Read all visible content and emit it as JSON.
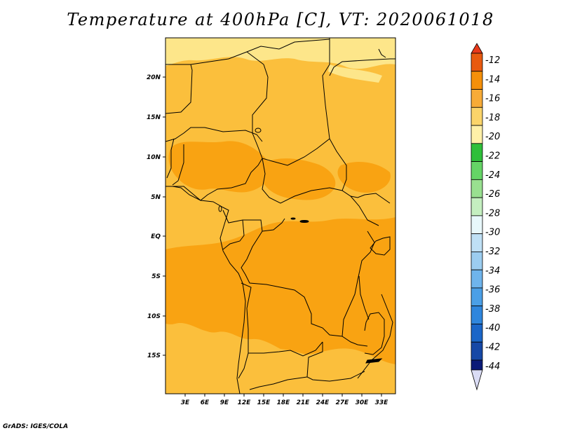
{
  "title": "Temperature at 400hPa [C], VT: 2020061018",
  "footer": "GrADS: IGES/COLA",
  "map": {
    "type": "filled-contour-map",
    "variable": "Temperature",
    "level": "400hPa",
    "units": "C",
    "valid_time": "2020061018",
    "region": "Central Africa",
    "lon_ticks": [
      "3E",
      "6E",
      "9E",
      "12E",
      "15E",
      "18E",
      "21E",
      "24E",
      "27E",
      "30E",
      "33E"
    ],
    "lat_ticks": [
      "20N",
      "15N",
      "10N",
      "5N",
      "EQ",
      "5S",
      "10S",
      "15S"
    ],
    "field_levels": [
      {
        "range": "-20 to -18",
        "color": "#fde68a"
      },
      {
        "range": "-18 to -16",
        "color": "#fbbf3c"
      },
      {
        "range": "-16 to -14",
        "color": "#f9a312"
      }
    ]
  },
  "colorbar": {
    "labels": [
      "-12",
      "-14",
      "-16",
      "-18",
      "-20",
      "-22",
      "-24",
      "-26",
      "-28",
      "-30",
      "-32",
      "-34",
      "-36",
      "-38",
      "-40",
      "-42",
      "-44"
    ],
    "colors": [
      "#e85a0f",
      "#f5900a",
      "#f7ab37",
      "#fbd46a",
      "#fff0a8",
      "#2fbf3a",
      "#65d466",
      "#99e090",
      "#c4efc0",
      "#e8f8fb",
      "#bfe0f5",
      "#9ccdf0",
      "#6fb4ec",
      "#4b9fe6",
      "#2f86dd",
      "#1b66c8",
      "#1648a6"
    ],
    "top_arrow_color": "#e8391a",
    "bottom_segment_color": "#0b1a78",
    "bottom_arrow_color": "#dadcf5"
  }
}
